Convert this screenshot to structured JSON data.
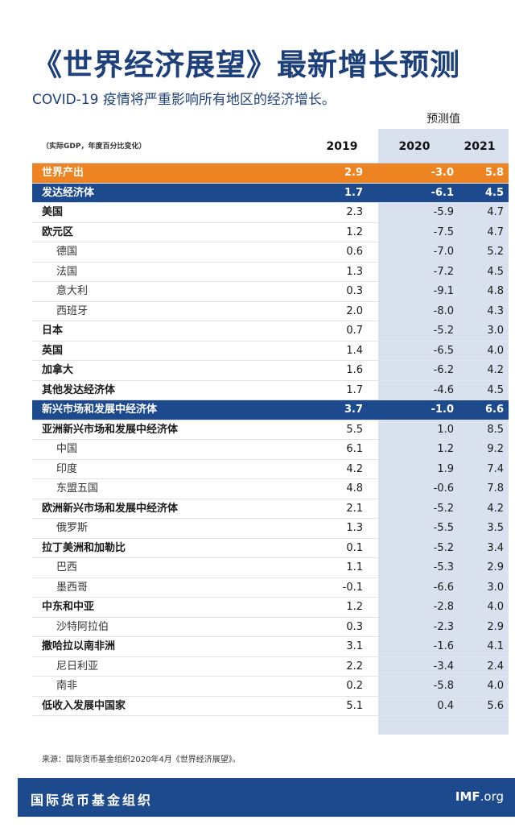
{
  "title": "《世界经济展望》最新增长预测",
  "subtitle": "COVID-19 疫情将严重影响所有地区的经济增长。",
  "table": {
    "forecast_label": "预测值",
    "note": "（实际GDP，年度百分比变化）",
    "years": [
      "2019",
      "2020",
      "2021"
    ],
    "rows": [
      {
        "label": "世界产出",
        "v": [
          "2.9",
          "-3.0",
          "5.8"
        ],
        "style": "world"
      },
      {
        "label": "发达经济体",
        "v": [
          "1.7",
          "-6.1",
          "4.5"
        ],
        "style": "adv"
      },
      {
        "label": "美国",
        "v": [
          "2.3",
          "-5.9",
          "4.7"
        ],
        "style": "bold"
      },
      {
        "label": "欧元区",
        "v": [
          "1.2",
          "-7.5",
          "4.7"
        ],
        "style": "bold"
      },
      {
        "label": "德国",
        "v": [
          "0.6",
          "-7.0",
          "5.2"
        ],
        "style": "indent"
      },
      {
        "label": "法国",
        "v": [
          "1.3",
          "-7.2",
          "4.5"
        ],
        "style": "indent"
      },
      {
        "label": "意大利",
        "v": [
          "0.3",
          "-9.1",
          "4.8"
        ],
        "style": "indent"
      },
      {
        "label": "西班牙",
        "v": [
          "2.0",
          "-8.0",
          "4.3"
        ],
        "style": "indent"
      },
      {
        "label": "日本",
        "v": [
          "0.7",
          "-5.2",
          "3.0"
        ],
        "style": "bold"
      },
      {
        "label": "英国",
        "v": [
          "1.4",
          "-6.5",
          "4.0"
        ],
        "style": "bold"
      },
      {
        "label": "加拿大",
        "v": [
          "1.6",
          "-6.2",
          "4.2"
        ],
        "style": "bold"
      },
      {
        "label": "其他发达经济体",
        "v": [
          "1.7",
          "-4.6",
          "4.5"
        ],
        "style": "bold"
      },
      {
        "label": "新兴市场和发展中经济体",
        "v": [
          "3.7",
          "-1.0",
          "6.6"
        ],
        "style": "emg"
      },
      {
        "label": "亚洲新兴市场和发展中经济体",
        "v": [
          "5.5",
          "1.0",
          "8.5"
        ],
        "style": "bold"
      },
      {
        "label": "中国",
        "v": [
          "6.1",
          "1.2",
          "9.2"
        ],
        "style": "indent"
      },
      {
        "label": "印度",
        "v": [
          "4.2",
          "1.9",
          "7.4"
        ],
        "style": "indent"
      },
      {
        "label": "东盟五国",
        "v": [
          "4.8",
          "-0.6",
          "7.8"
        ],
        "style": "indent"
      },
      {
        "label": "欧洲新兴市场和发展中经济体",
        "v": [
          "2.1",
          "-5.2",
          "4.2"
        ],
        "style": "bold"
      },
      {
        "label": "俄罗斯",
        "v": [
          "1.3",
          "-5.5",
          "3.5"
        ],
        "style": "indent"
      },
      {
        "label": "拉丁美洲和加勒比",
        "v": [
          "0.1",
          "-5.2",
          "3.4"
        ],
        "style": "bold"
      },
      {
        "label": "巴西",
        "v": [
          "1.1",
          "-5.3",
          "2.9"
        ],
        "style": "indent"
      },
      {
        "label": "墨西哥",
        "v": [
          "-0.1",
          "-6.6",
          "3.0"
        ],
        "style": "indent"
      },
      {
        "label": "中东和中亚",
        "v": [
          "1.2",
          "-2.8",
          "4.0"
        ],
        "style": "bold"
      },
      {
        "label": "沙特阿拉伯",
        "v": [
          "0.3",
          "-2.3",
          "2.9"
        ],
        "style": "indent"
      },
      {
        "label": "撒哈拉以南非洲",
        "v": [
          "3.1",
          "-1.6",
          "4.1"
        ],
        "style": "bold"
      },
      {
        "label": "尼日利亚",
        "v": [
          "2.2",
          "-3.4",
          "2.4"
        ],
        "style": "indent"
      },
      {
        "label": "南非",
        "v": [
          "0.2",
          "-5.8",
          "4.0"
        ],
        "style": "indent"
      },
      {
        "label": "低收入发展中国家",
        "v": [
          "5.1",
          "0.4",
          "5.6"
        ],
        "style": "bold"
      }
    ]
  },
  "source": "来源：国际货币基金组织2020年4月《世界经济展望》。",
  "footer": {
    "org": "国际货币基金组织",
    "site_bold": "IMF",
    "site_rest": ".org"
  },
  "colors": {
    "title_blue": "#1d3f7a",
    "world_orange": "#ee8421",
    "band_blue": "#1d4a8c",
    "projection_shade": "#d9e1ee"
  }
}
